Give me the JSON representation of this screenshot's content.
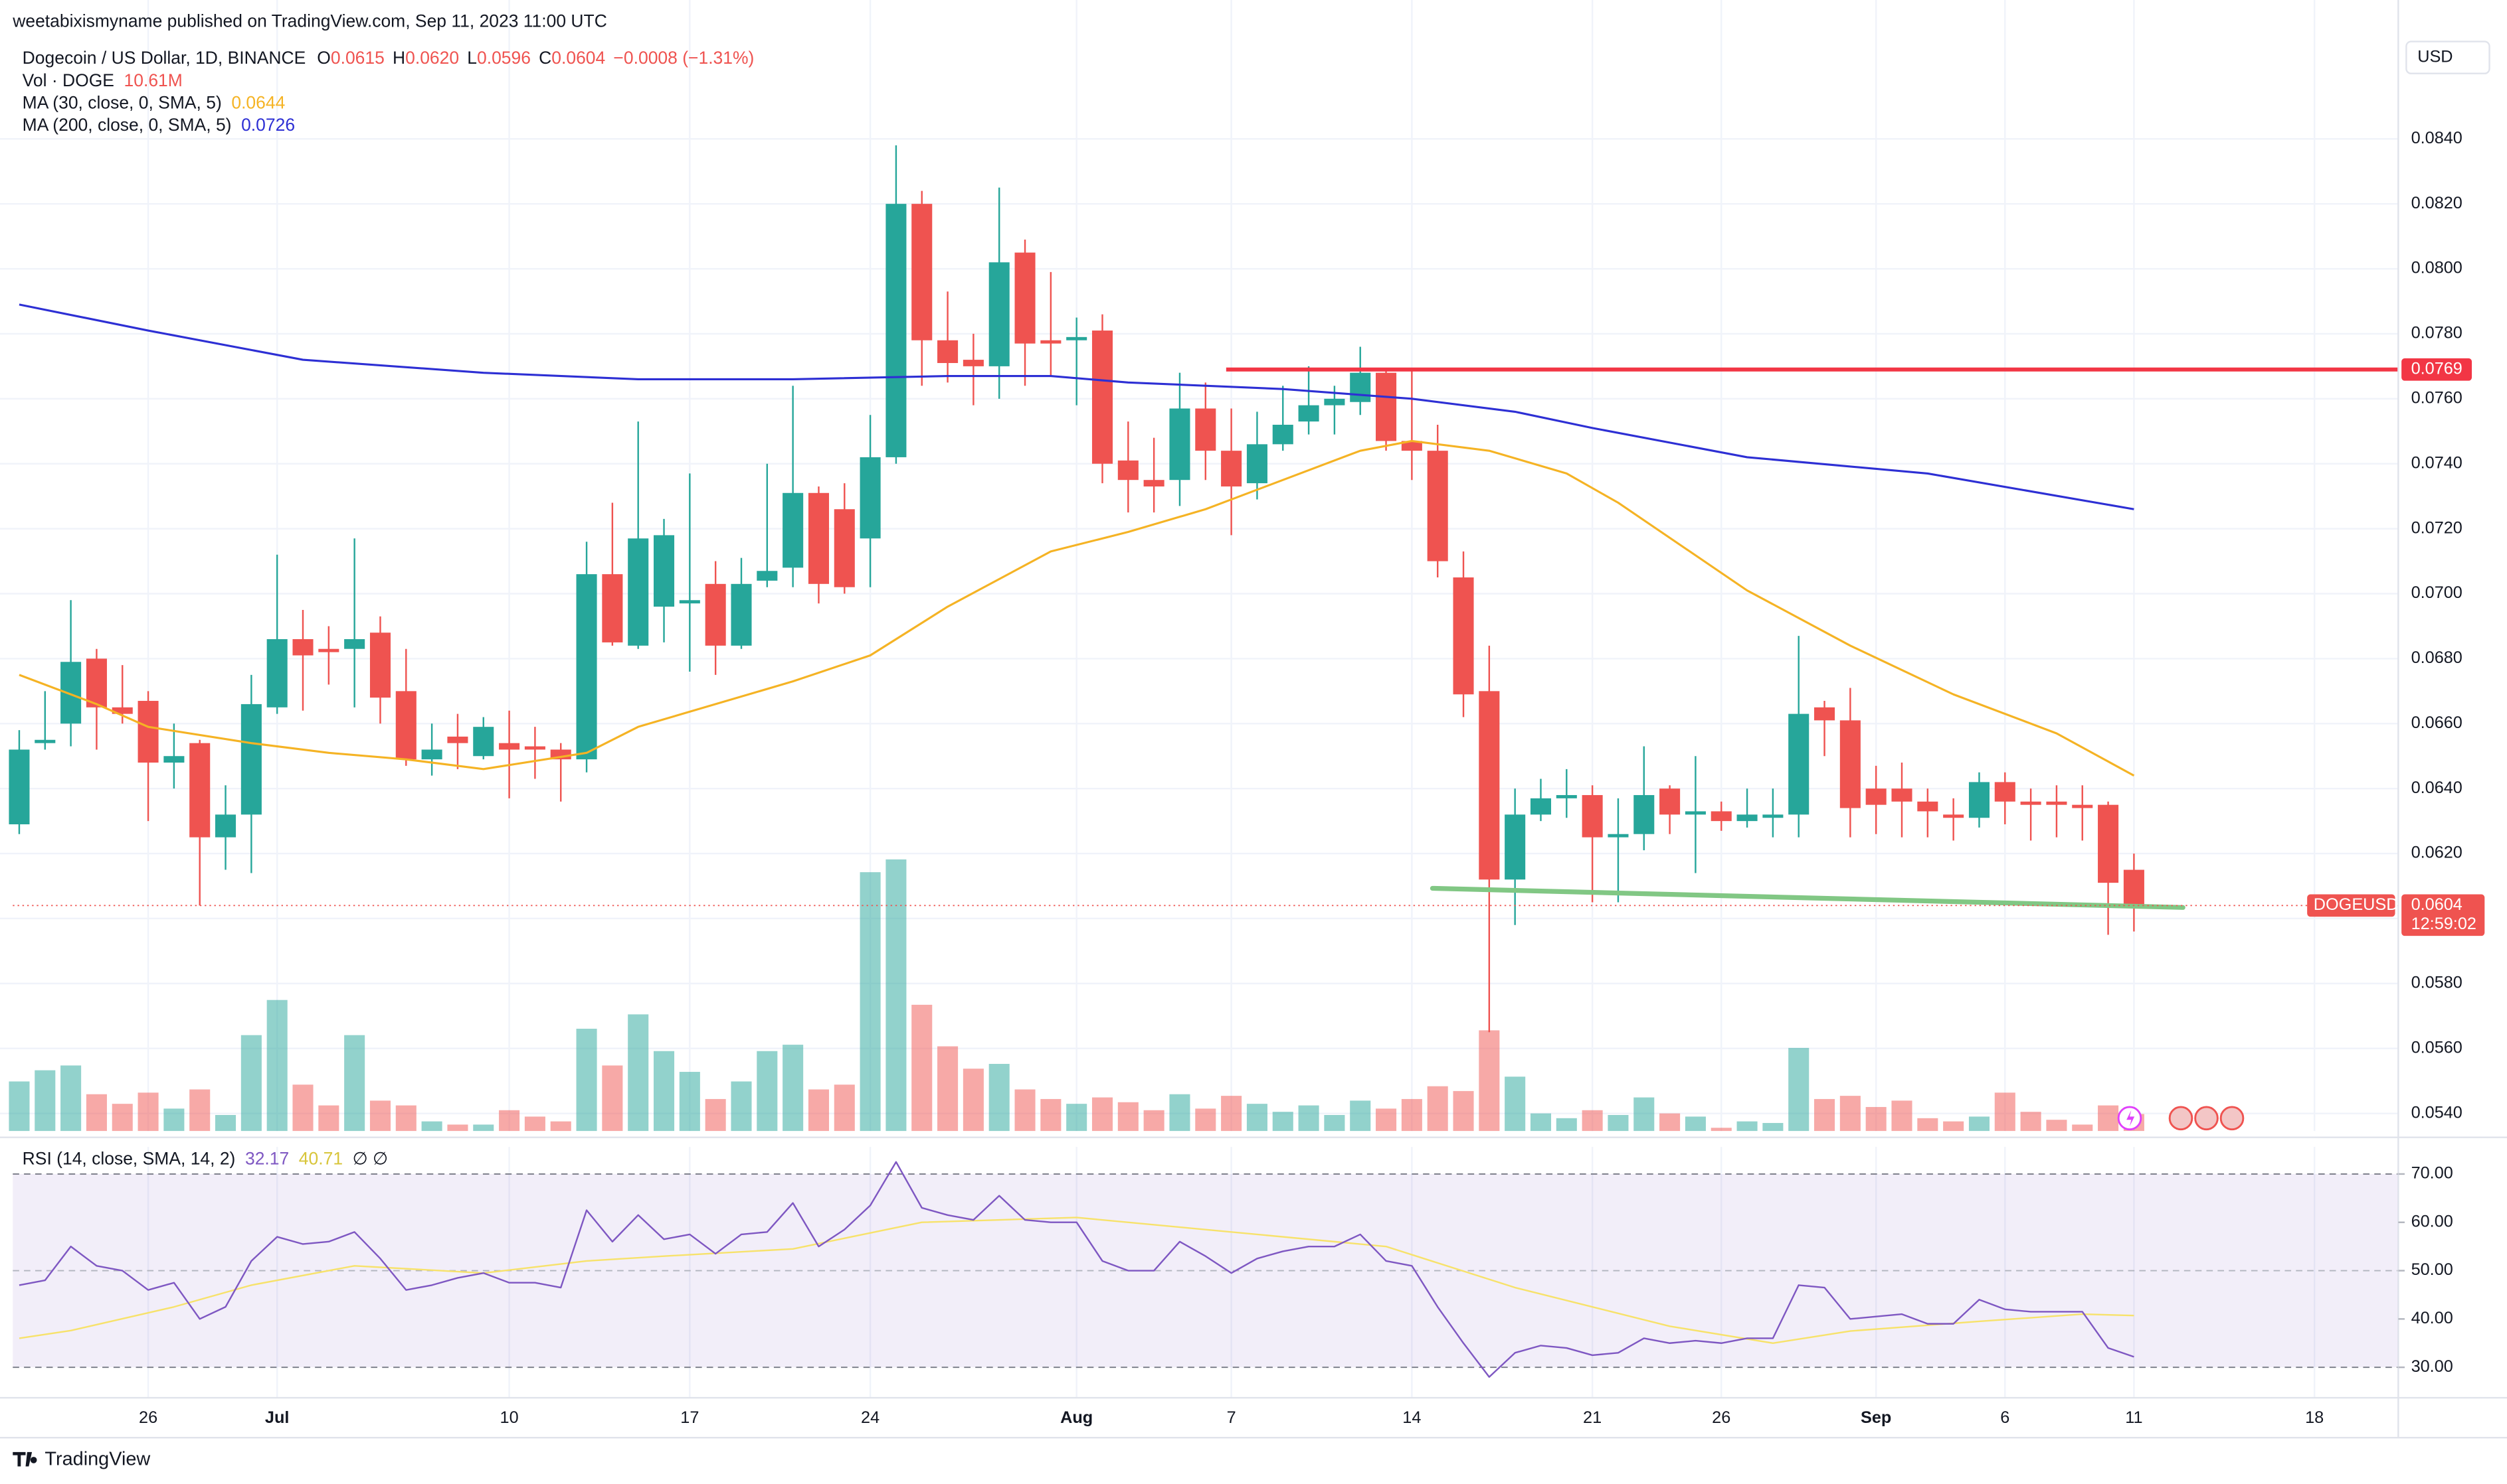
{
  "chart_data": {
    "type": "candlestick",
    "header": "weetabixismyname published on TradingView.com, Sep 11, 2023 11:00 UTC",
    "currency": "USD",
    "footer": "TradingView",
    "legend": {
      "symbol": "Dogecoin / US Dollar, 1D, BINANCE",
      "ohlc": [
        {
          "label": "O",
          "value": "0.0615"
        },
        {
          "label": "H",
          "value": "0.0620"
        },
        {
          "label": "L",
          "value": "0.0596"
        },
        {
          "label": "C",
          "value": "0.0604"
        }
      ],
      "change": "−0.0008 (−1.31%)"
    },
    "up_color": "#26a69a",
    "down_color": "#ef5350",
    "xlim": [
      -0.25,
      92.25
    ],
    "xticks": [
      {
        "value": 5,
        "label": "26"
      },
      {
        "value": 10,
        "label": "Jul"
      },
      {
        "value": 19,
        "label": "10"
      },
      {
        "value": 26,
        "label": "17"
      },
      {
        "value": 33,
        "label": "24"
      },
      {
        "value": 41,
        "label": "Aug"
      },
      {
        "value": 47,
        "label": "7"
      },
      {
        "value": 54,
        "label": "14"
      },
      {
        "value": 61,
        "label": "21"
      },
      {
        "value": 66,
        "label": "26"
      },
      {
        "value": 72,
        "label": "Sep"
      },
      {
        "value": 77,
        "label": "6"
      },
      {
        "value": 82,
        "label": "11"
      },
      {
        "value": 89,
        "label": "18"
      }
    ],
    "ylim": [
      0.05346,
      0.0868
    ],
    "yticks": [
      {
        "value": 0.054,
        "label": "0.0540"
      },
      {
        "value": 0.056,
        "label": "0.0560"
      },
      {
        "value": 0.058,
        "label": "0.0580"
      },
      {
        "value": 0.06,
        "label": "0.0600"
      },
      {
        "value": 0.062,
        "label": "0.0620"
      },
      {
        "value": 0.064,
        "label": "0.0640"
      },
      {
        "value": 0.066,
        "label": "0.0660"
      },
      {
        "value": 0.068,
        "label": "0.0680"
      },
      {
        "value": 0.07,
        "label": "0.0700"
      },
      {
        "value": 0.072,
        "label": "0.0720"
      },
      {
        "value": 0.074,
        "label": "0.0740"
      },
      {
        "value": 0.076,
        "label": "0.0760"
      },
      {
        "value": 0.078,
        "label": "0.0780"
      },
      {
        "value": 0.08,
        "label": "0.0800"
      },
      {
        "value": 0.082,
        "label": "0.0820"
      },
      {
        "value": 0.084,
        "label": "0.0840"
      }
    ],
    "grid": true,
    "open": [
      0.0629,
      0.0654,
      0.066,
      0.068,
      0.0665,
      0.0667,
      0.0648,
      0.0654,
      0.0625,
      0.0632,
      0.0665,
      0.0686,
      0.0683,
      0.0683,
      0.0688,
      0.067,
      0.0649,
      0.0656,
      0.065,
      0.0654,
      0.0653,
      0.0652,
      0.0649,
      0.0706,
      0.0684,
      0.0696,
      0.0697,
      0.0703,
      0.0684,
      0.0704,
      0.0708,
      0.0731,
      0.0726,
      0.0717,
      0.0742,
      0.082,
      0.0778,
      0.0772,
      0.077,
      0.0805,
      0.0778,
      0.0778,
      0.0781,
      0.0741,
      0.0735,
      0.0735,
      0.0757,
      0.0744,
      0.0734,
      0.0746,
      0.0753,
      0.0758,
      0.0759,
      0.0768,
      0.0747,
      0.0744,
      0.0705,
      0.067,
      0.0612,
      0.0632,
      0.0637,
      0.0638,
      0.0625,
      0.0626,
      0.064,
      0.0632,
      0.0633,
      0.063,
      0.0631,
      0.0632,
      0.0665,
      0.0661,
      0.064,
      0.064,
      0.0636,
      0.0632,
      0.0631,
      0.0642,
      0.0636,
      0.0636,
      0.0635,
      0.0635,
      0.0615
    ],
    "high": [
      0.0658,
      0.067,
      0.0698,
      0.0683,
      0.0678,
      0.067,
      0.066,
      0.0655,
      0.0641,
      0.0675,
      0.0712,
      0.0695,
      0.069,
      0.0717,
      0.0693,
      0.0683,
      0.066,
      0.0663,
      0.0662,
      0.0664,
      0.0659,
      0.0654,
      0.0716,
      0.0728,
      0.0753,
      0.0723,
      0.0737,
      0.071,
      0.0711,
      0.074,
      0.0764,
      0.0733,
      0.0734,
      0.0755,
      0.0838,
      0.0824,
      0.0793,
      0.078,
      0.0825,
      0.0809,
      0.0799,
      0.0785,
      0.0786,
      0.0753,
      0.0748,
      0.0768,
      0.0765,
      0.0757,
      0.0756,
      0.0764,
      0.077,
      0.0764,
      0.0776,
      0.0769,
      0.0769,
      0.0752,
      0.0713,
      0.0684,
      0.064,
      0.0643,
      0.0646,
      0.0641,
      0.0637,
      0.0653,
      0.0641,
      0.065,
      0.0636,
      0.064,
      0.064,
      0.0687,
      0.0667,
      0.0671,
      0.0647,
      0.0648,
      0.064,
      0.0637,
      0.0645,
      0.0645,
      0.064,
      0.0641,
      0.0641,
      0.0636,
      0.062
    ],
    "low": [
      0.0626,
      0.0652,
      0.0653,
      0.0652,
      0.066,
      0.063,
      0.064,
      0.0604,
      0.0615,
      0.0614,
      0.0663,
      0.0664,
      0.0672,
      0.0665,
      0.066,
      0.0647,
      0.0644,
      0.0646,
      0.0649,
      0.0637,
      0.0643,
      0.0636,
      0.0645,
      0.0684,
      0.0683,
      0.0685,
      0.0676,
      0.0675,
      0.0683,
      0.0702,
      0.0702,
      0.0697,
      0.07,
      0.0702,
      0.074,
      0.0764,
      0.0765,
      0.0758,
      0.076,
      0.0764,
      0.0767,
      0.0758,
      0.0734,
      0.0725,
      0.0725,
      0.0727,
      0.0735,
      0.0718,
      0.0729,
      0.0744,
      0.0749,
      0.0749,
      0.0755,
      0.0744,
      0.0735,
      0.0705,
      0.0662,
      0.0565,
      0.0598,
      0.063,
      0.0631,
      0.0605,
      0.0605,
      0.0621,
      0.0626,
      0.0614,
      0.0627,
      0.0628,
      0.0625,
      0.0625,
      0.065,
      0.0625,
      0.0626,
      0.0625,
      0.0625,
      0.0624,
      0.0628,
      0.0629,
      0.0624,
      0.0625,
      0.0624,
      0.0595,
      0.0596
    ],
    "close": [
      0.0652,
      0.0655,
      0.0679,
      0.0665,
      0.0663,
      0.0648,
      0.065,
      0.0625,
      0.0632,
      0.0666,
      0.0686,
      0.0681,
      0.0682,
      0.0686,
      0.0668,
      0.0649,
      0.0652,
      0.0654,
      0.0659,
      0.0652,
      0.0652,
      0.0649,
      0.0706,
      0.0685,
      0.0717,
      0.0718,
      0.0698,
      0.0684,
      0.0703,
      0.0707,
      0.0731,
      0.0703,
      0.0702,
      0.0742,
      0.082,
      0.0778,
      0.0771,
      0.077,
      0.0802,
      0.0777,
      0.0777,
      0.0779,
      0.074,
      0.0735,
      0.0733,
      0.0757,
      0.0744,
      0.0733,
      0.0746,
      0.0752,
      0.0758,
      0.076,
      0.0768,
      0.0747,
      0.0744,
      0.071,
      0.0669,
      0.0612,
      0.0632,
      0.0637,
      0.0638,
      0.0625,
      0.0626,
      0.0638,
      0.0632,
      0.0633,
      0.063,
      0.0632,
      0.0632,
      0.0663,
      0.0661,
      0.0634,
      0.0635,
      0.0636,
      0.0633,
      0.0631,
      0.0642,
      0.0636,
      0.0635,
      0.0635,
      0.0634,
      0.0611,
      0.0604
    ],
    "volume": {
      "name": "Vol · DOGE",
      "vlim": [
        0,
        678
      ],
      "values": [
        31,
        38,
        41,
        23,
        17,
        24,
        14,
        26,
        10,
        60,
        82,
        29,
        16,
        60,
        19,
        16,
        6,
        4,
        4,
        13,
        9,
        6,
        64,
        41,
        73,
        50,
        37,
        20,
        31,
        50,
        54,
        26,
        29,
        162,
        170,
        79,
        53,
        39,
        42,
        26,
        20,
        17,
        21,
        18,
        13,
        23,
        14,
        22,
        17,
        12,
        16,
        10,
        19,
        14,
        20,
        28,
        25,
        63,
        34,
        11,
        8,
        13,
        10,
        21,
        11,
        9,
        2,
        6,
        5,
        52,
        20,
        22,
        15,
        19,
        8,
        6,
        9,
        24,
        12,
        7,
        4,
        16,
        10.61
      ],
      "value_labels": {
        "82": "10.61M"
      }
    },
    "moving_averages": [
      {
        "name": "MA (30, close, 0, SMA, 5)",
        "color": "#f5b324",
        "x": [
          0,
          3,
          5,
          9,
          12,
          15,
          18,
          22,
          24,
          27,
          30,
          33,
          36,
          40,
          43,
          46,
          49,
          52,
          54,
          57,
          60,
          62,
          67,
          71,
          75,
          79,
          82
        ],
        "values": [
          0.0675,
          0.0666,
          0.0659,
          0.0654,
          0.0651,
          0.0649,
          0.0646,
          0.0651,
          0.0659,
          0.0666,
          0.0673,
          0.0681,
          0.0696,
          0.0713,
          0.0719,
          0.0726,
          0.0735,
          0.0744,
          0.0747,
          0.0744,
          0.0737,
          0.0728,
          0.0701,
          0.0684,
          0.0669,
          0.0657,
          0.0644
        ]
      },
      {
        "name": "MA (200, close, 0, SMA, 5)",
        "color": "#2d2fd4",
        "x": [
          0,
          5,
          11,
          18,
          24,
          30,
          36,
          40,
          43,
          49,
          54,
          58,
          61,
          67,
          74,
          82
        ],
        "values": [
          0.0789,
          0.0781,
          0.0772,
          0.0768,
          0.0766,
          0.0766,
          0.0767,
          0.0767,
          0.0765,
          0.0763,
          0.076,
          0.0756,
          0.0751,
          0.0742,
          0.0737,
          0.0726
        ]
      }
    ],
    "level": {
      "value": 0.0769,
      "color": "#f23645",
      "x_start": 46.8
    },
    "trendline": {
      "color": "#81c784",
      "x": [
        54.8,
        83.9
      ],
      "values": [
        0.06093,
        0.06034
      ]
    },
    "price_label": {
      "symbol": "DOGEUSD",
      "countdown": "12:59:02"
    },
    "rsi": {
      "type": "line",
      "name": "RSI (14, close, SMA, 14, 2)",
      "extra": "∅ ∅",
      "ylim": [
        23.7,
        75.6
      ],
      "band": [
        30,
        70
      ],
      "midline": 50,
      "yticks": [
        {
          "value": 30,
          "label": "30.00"
        },
        {
          "value": 40,
          "label": "40.00"
        },
        {
          "value": 50,
          "label": "50.00"
        },
        {
          "value": 60,
          "label": "60.00"
        },
        {
          "value": 70,
          "label": "70.00"
        }
      ],
      "series": [
        {
          "name": "RSI",
          "color": "#7e57c2",
          "values": [
            47,
            48,
            55,
            51,
            50,
            46,
            47.5,
            40,
            42.5,
            52,
            57,
            55.5,
            56,
            58,
            52.5,
            46,
            47,
            48.5,
            49.5,
            47.5,
            47.5,
            46.5,
            62.5,
            56,
            61.5,
            56.5,
            57.5,
            53.5,
            57.5,
            58,
            64,
            55,
            58.5,
            63.5,
            72.5,
            63,
            61.5,
            60.5,
            65.5,
            60.5,
            60,
            60,
            52,
            50,
            50,
            56,
            53,
            49.5,
            52.5,
            54,
            55,
            55,
            57.5,
            52,
            51,
            42.5,
            35,
            28,
            33,
            34.5,
            34,
            32.5,
            33,
            36,
            35,
            35.5,
            35,
            36,
            36,
            47,
            46.5,
            40,
            40.5,
            41,
            39,
            39,
            44,
            42,
            41.5,
            41.5,
            41.5,
            34,
            32.17
          ]
        },
        {
          "name": "RSI-based MA",
          "color": "#f7e26b",
          "x": [
            0,
            2,
            6,
            9,
            13,
            18,
            22,
            25,
            30,
            35,
            41,
            46,
            53,
            58,
            64,
            68,
            71,
            76,
            80,
            82
          ],
          "values": [
            36,
            37.6,
            42.5,
            47,
            51,
            49.5,
            52,
            53,
            54.5,
            60,
            61,
            58.5,
            55,
            46.5,
            38.5,
            35,
            37.5,
            39.5,
            41,
            40.71
          ]
        }
      ]
    }
  }
}
